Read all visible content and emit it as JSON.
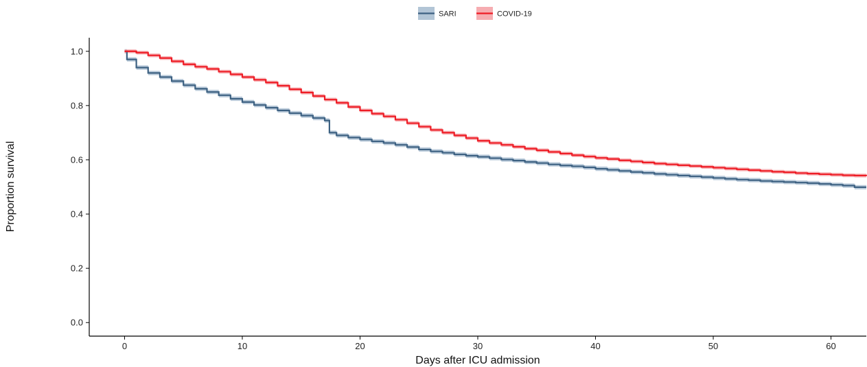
{
  "chart_data": {
    "type": "line",
    "subtype": "kaplan-meier-step",
    "xlabel": "Days after ICU admission",
    "ylabel": "Proportion survival",
    "xlim": [
      -3,
      63
    ],
    "ylim": [
      -0.05,
      1.05
    ],
    "x_ticks": [
      0,
      10,
      20,
      30,
      40,
      50,
      60
    ],
    "x_tick_labels": [
      "0",
      "10",
      "20",
      "30",
      "40",
      "50",
      "60"
    ],
    "y_ticks": [
      0.0,
      0.2,
      0.4,
      0.6,
      0.8,
      1.0
    ],
    "y_tick_labels": [
      "0.0",
      "0.2",
      "0.4",
      "0.6",
      "0.8",
      "1.0"
    ],
    "grid": false,
    "legend_position": "top-center",
    "series": [
      {
        "name": "SARI",
        "color": "#3d6182",
        "ci_color": "#9fb6cc",
        "x": [
          0,
          0.2,
          1,
          2,
          3,
          4,
          5,
          6,
          7,
          8,
          9,
          10,
          11,
          12,
          13,
          14,
          15,
          16,
          17,
          17.4,
          18,
          19,
          20,
          21,
          22,
          23,
          24,
          25,
          26,
          27,
          28,
          29,
          30,
          31,
          32,
          33,
          34,
          35,
          36,
          37,
          38,
          39,
          40,
          41,
          42,
          43,
          44,
          45,
          46,
          47,
          48,
          49,
          50,
          51,
          52,
          53,
          54,
          55,
          56,
          57,
          58,
          59,
          60,
          61,
          62,
          63
        ],
        "y": [
          1.0,
          0.97,
          0.94,
          0.92,
          0.905,
          0.89,
          0.875,
          0.862,
          0.85,
          0.838,
          0.825,
          0.813,
          0.802,
          0.792,
          0.782,
          0.772,
          0.763,
          0.754,
          0.745,
          0.7,
          0.69,
          0.682,
          0.675,
          0.668,
          0.662,
          0.655,
          0.647,
          0.638,
          0.631,
          0.626,
          0.62,
          0.615,
          0.611,
          0.606,
          0.601,
          0.597,
          0.592,
          0.588,
          0.583,
          0.579,
          0.576,
          0.572,
          0.567,
          0.563,
          0.559,
          0.555,
          0.552,
          0.548,
          0.545,
          0.542,
          0.539,
          0.536,
          0.533,
          0.53,
          0.527,
          0.525,
          0.522,
          0.52,
          0.518,
          0.516,
          0.514,
          0.511,
          0.508,
          0.505,
          0.499,
          0.499
        ],
        "ci_halfwidth": 0.008
      },
      {
        "name": "COVID-19",
        "color": "#ee1c25",
        "ci_color": "#f4989d",
        "x": [
          0,
          1,
          2,
          3,
          4,
          5,
          6,
          7,
          8,
          9,
          10,
          11,
          12,
          13,
          14,
          15,
          16,
          17,
          18,
          19,
          20,
          21,
          22,
          23,
          24,
          25,
          26,
          27,
          28,
          29,
          30,
          31,
          32,
          33,
          34,
          35,
          36,
          37,
          38,
          39,
          40,
          41,
          42,
          43,
          44,
          45,
          46,
          47,
          48,
          49,
          50,
          51,
          52,
          53,
          54,
          55,
          56,
          57,
          58,
          59,
          60,
          61,
          62,
          63
        ],
        "y": [
          1.0,
          0.995,
          0.985,
          0.975,
          0.963,
          0.952,
          0.943,
          0.935,
          0.925,
          0.915,
          0.905,
          0.895,
          0.885,
          0.873,
          0.86,
          0.848,
          0.835,
          0.822,
          0.81,
          0.795,
          0.782,
          0.77,
          0.76,
          0.748,
          0.735,
          0.722,
          0.71,
          0.7,
          0.69,
          0.68,
          0.67,
          0.662,
          0.655,
          0.648,
          0.641,
          0.635,
          0.629,
          0.623,
          0.617,
          0.612,
          0.607,
          0.603,
          0.598,
          0.594,
          0.59,
          0.586,
          0.583,
          0.58,
          0.577,
          0.574,
          0.571,
          0.568,
          0.565,
          0.562,
          0.559,
          0.556,
          0.554,
          0.551,
          0.549,
          0.547,
          0.545,
          0.543,
          0.542,
          0.54
        ],
        "ci_halfwidth": 0.007
      }
    ]
  }
}
